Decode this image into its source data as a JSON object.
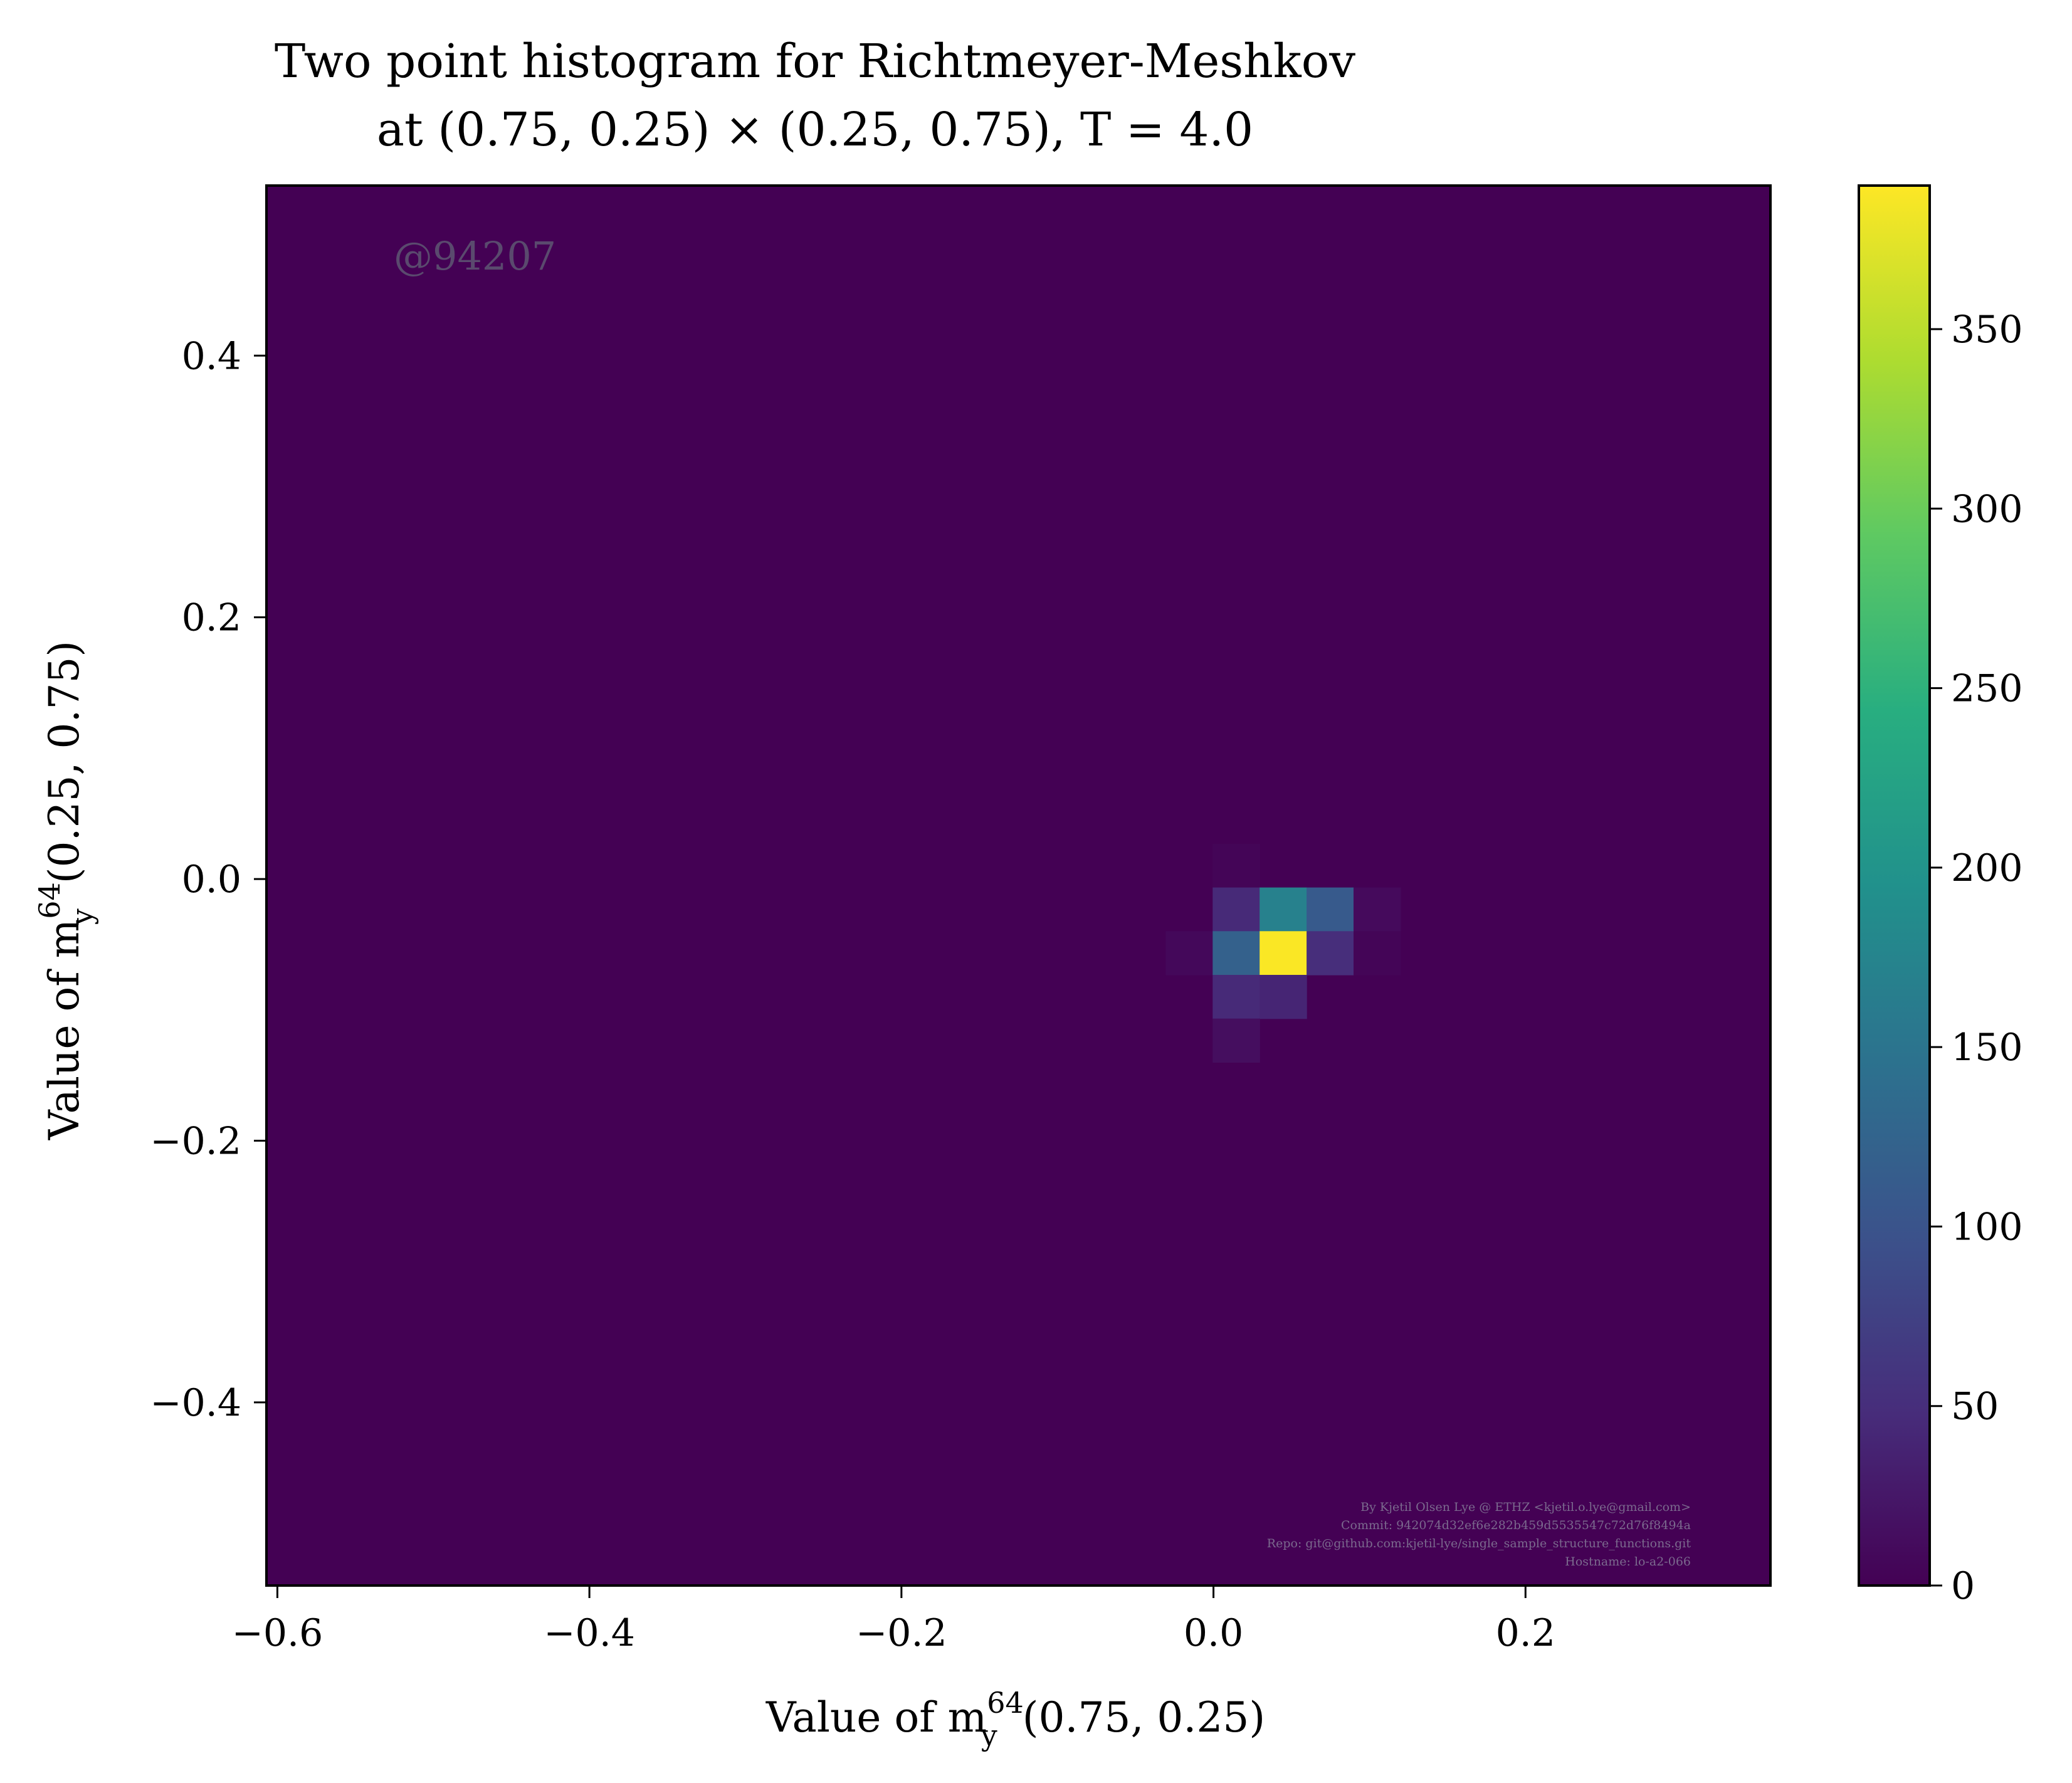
{
  "chart_data": {
    "type": "heatmap",
    "title_line1": "Two point histogram for Richtmeyer-Meshkov",
    "title_line2": "at (0.75, 0.25) × (0.25, 0.75), T = 4.0",
    "xlabel": "Value of m_y^64(0.75, 0.25)",
    "ylabel": "Value of m_y^64(0.25, 0.75)",
    "xlabel_parts": {
      "prefix": "Value of m",
      "sub": "y",
      "sup": "64",
      "suffix": "(0.75, 0.25)"
    },
    "ylabel_parts": {
      "prefix": "Value of m",
      "sub": "y",
      "sup": "64",
      "suffix": "(0.25, 0.75)"
    },
    "xlim": [
      -0.607,
      0.357
    ],
    "ylim": [
      -0.54,
      0.53
    ],
    "xticks": [
      -0.6,
      -0.4,
      -0.2,
      0.0,
      0.2
    ],
    "xtick_labels": [
      "−0.6",
      "−0.4",
      "−0.2",
      "0.0",
      "0.2"
    ],
    "yticks": [
      -0.4,
      -0.2,
      0.0,
      0.2,
      0.4
    ],
    "ytick_labels": [
      "−0.4",
      "−0.2",
      "0.0",
      "0.2",
      "0.4"
    ],
    "colorbar": {
      "colormap": "viridis",
      "range": [
        0,
        390
      ],
      "ticks": [
        0,
        50,
        100,
        150,
        200,
        250,
        300,
        350
      ],
      "tick_labels": [
        "0",
        "50",
        "100",
        "150",
        "200",
        "250",
        "300",
        "350"
      ]
    },
    "background_value": 0,
    "bin_width_x": 0.0301,
    "bin_width_y": 0.0334,
    "bins": [
      {
        "x0": -0.0005,
        "y0": -0.0065,
        "value": 4
      },
      {
        "x0": -0.0306,
        "y0": -0.0733,
        "value": 8
      },
      {
        "x0": -0.0005,
        "y0": -0.0399,
        "value": 45
      },
      {
        "x0": 0.0296,
        "y0": -0.0399,
        "value": 170
      },
      {
        "x0": 0.0597,
        "y0": -0.0399,
        "value": 110
      },
      {
        "x0": 0.0898,
        "y0": -0.0399,
        "value": 10
      },
      {
        "x0": -0.0005,
        "y0": -0.0733,
        "value": 120
      },
      {
        "x0": 0.0296,
        "y0": -0.0733,
        "value": 388
      },
      {
        "x0": 0.0597,
        "y0": -0.0733,
        "value": 50
      },
      {
        "x0": 0.0898,
        "y0": -0.0733,
        "value": 4
      },
      {
        "x0": -0.0005,
        "y0": -0.1067,
        "value": 45
      },
      {
        "x0": 0.0296,
        "y0": -0.1067,
        "value": 40
      },
      {
        "x0": -0.0005,
        "y0": -0.1401,
        "value": 14
      }
    ],
    "watermark": "@94207",
    "credits": [
      "By Kjetil Olsen Lye @ ETHZ <kjetil.o.lye@gmail.com>",
      "Commit: 942074d32ef6e282b459d5535547c72d76f8494a",
      "Repo: git@github.com:kjetil-lye/single_sample_structure_functions.git",
      "Hostname: lo-a2-066"
    ]
  }
}
